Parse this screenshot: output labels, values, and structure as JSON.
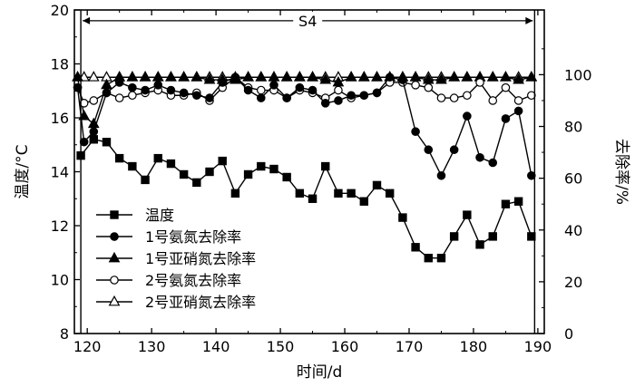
{
  "chart_data": {
    "type": "line",
    "xlabel": "时间/d",
    "ylabel_left": "温度/°C",
    "ylabel_right": "去除率/%",
    "xlim": [
      118,
      191
    ],
    "ylim_left": [
      8,
      20
    ],
    "ylim_right": [
      0,
      125
    ],
    "x_ticks": [
      120,
      130,
      140,
      150,
      160,
      170,
      180,
      190
    ],
    "y_ticks_left": [
      8,
      10,
      12,
      14,
      16,
      18,
      20
    ],
    "y_ticks_right": [
      0,
      20,
      40,
      60,
      80,
      100
    ],
    "legend_position": "center-left",
    "grid": false,
    "annotation": {
      "label": "S4",
      "x_start": 119,
      "x_end": 189.5,
      "y_left": 19.6
    },
    "series": [
      {
        "name": "温度",
        "axis": "left",
        "marker": "square",
        "x": [
          119,
          121,
          123,
          125,
          127,
          129,
          131,
          133,
          135,
          137,
          139,
          141,
          143,
          145,
          147,
          149,
          151,
          153,
          155,
          157,
          159,
          161,
          163,
          165,
          167,
          169,
          171,
          173,
          175,
          177,
          179,
          181,
          183,
          185,
          187,
          189
        ],
        "values": [
          14.6,
          15.2,
          15.1,
          14.5,
          14.2,
          13.7,
          14.5,
          14.3,
          13.9,
          13.6,
          14.0,
          14.4,
          13.2,
          13.9,
          14.2,
          14.1,
          13.8,
          13.2,
          13.0,
          14.2,
          13.2,
          13.2,
          12.9,
          13.5,
          13.2,
          12.3,
          11.2,
          10.8,
          10.8,
          11.6,
          12.4,
          11.3,
          11.6,
          12.8,
          12.9,
          11.6
        ]
      },
      {
        "name": "1号氨氮去除率",
        "axis": "right",
        "marker": "filled-circle",
        "x": [
          118.5,
          119.5,
          121,
          123,
          125,
          127,
          129,
          131,
          133,
          135,
          137,
          139,
          141,
          143,
          145,
          147,
          149,
          151,
          153,
          155,
          157,
          159,
          161,
          163,
          165,
          167,
          169,
          171,
          173,
          175,
          177,
          179,
          181,
          183,
          185,
          187,
          189
        ],
        "values": [
          95,
          74,
          78,
          93,
          97,
          95,
          94,
          96,
          94,
          93,
          92,
          91,
          97,
          99,
          94,
          91,
          96,
          91,
          95,
          94,
          89,
          90,
          92,
          92,
          93,
          99,
          98,
          78,
          71,
          61,
          71,
          84,
          68,
          66,
          83,
          86,
          61
        ]
      },
      {
        "name": "1号亚硝氮去除率",
        "axis": "right",
        "marker": "filled-triangle",
        "x": [
          118.5,
          119.5,
          121,
          123,
          125,
          127,
          129,
          131,
          133,
          135,
          137,
          139,
          141,
          143,
          145,
          147,
          149,
          151,
          153,
          155,
          157,
          159,
          161,
          163,
          165,
          167,
          169,
          171,
          173,
          175,
          177,
          179,
          181,
          183,
          185,
          187,
          189
        ],
        "values": [
          99,
          84,
          81,
          96,
          99,
          99,
          99,
          99,
          99,
          99,
          99,
          98,
          98,
          98,
          99,
          99,
          99,
          99,
          99,
          99,
          98,
          97,
          99,
          99,
          99,
          99,
          99,
          99,
          98,
          98,
          99,
          99,
          99,
          99,
          99,
          98,
          99
        ]
      },
      {
        "name": "2号氨氮去除率",
        "axis": "right",
        "marker": "open-circle",
        "x": [
          118.5,
          119.5,
          121,
          123,
          125,
          127,
          129,
          131,
          133,
          135,
          137,
          139,
          141,
          143,
          145,
          147,
          149,
          151,
          153,
          155,
          157,
          159,
          161,
          163,
          165,
          167,
          169,
          171,
          173,
          175,
          177,
          179,
          181,
          183,
          185,
          187,
          189
        ],
        "values": [
          95,
          89,
          90,
          93,
          91,
          92,
          93,
          94,
          92,
          92,
          93,
          90,
          95,
          99,
          95,
          94,
          94,
          91,
          94,
          93,
          91,
          94,
          91,
          92,
          93,
          97,
          97,
          96,
          95,
          91,
          91,
          92,
          97,
          90,
          95,
          90,
          92
        ]
      },
      {
        "name": "2号亚硝氮去除率",
        "axis": "right",
        "marker": "open-triangle",
        "x": [
          118.5,
          119.5,
          121,
          123,
          125,
          127,
          129,
          131,
          133,
          135,
          137,
          139,
          141,
          143,
          145,
          147,
          149,
          151,
          153,
          155,
          157,
          159,
          161,
          163,
          165,
          167,
          169,
          171,
          173,
          175,
          177,
          179,
          181,
          183,
          185,
          187,
          189
        ],
        "values": [
          99,
          99,
          99,
          99,
          99,
          99,
          99,
          99,
          99,
          99,
          99,
          99,
          99,
          99,
          99,
          99,
          99,
          99,
          99,
          99,
          99,
          99,
          99,
          99,
          99,
          99,
          99,
          99,
          99,
          99,
          99,
          99,
          99,
          99,
          99,
          99,
          99
        ]
      }
    ]
  }
}
